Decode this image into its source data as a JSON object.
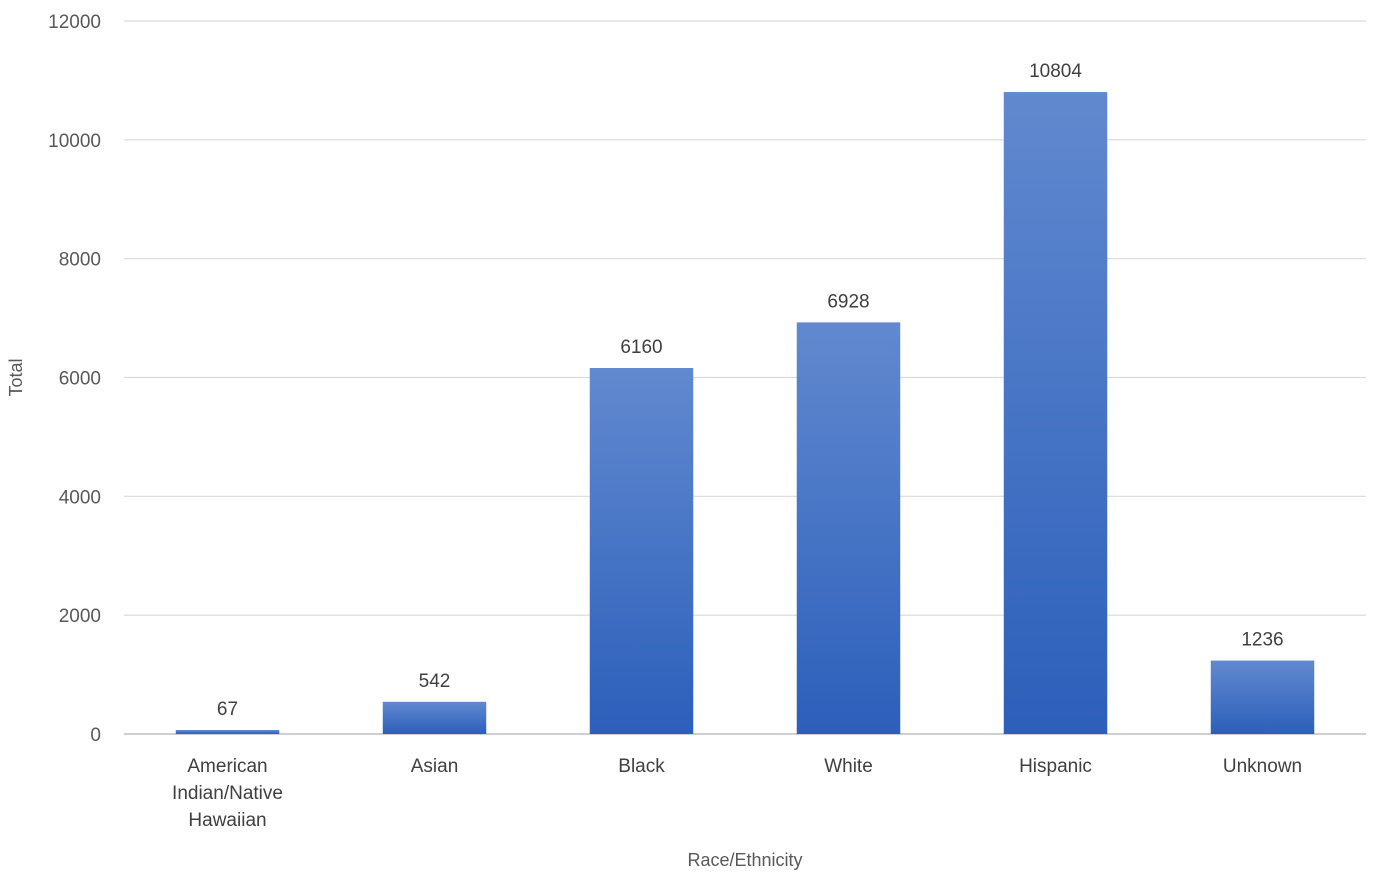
{
  "chart_data": {
    "type": "bar",
    "title": "",
    "xlabel": "Race/Ethnicity",
    "ylabel": "Total",
    "ylim": [
      0,
      12000
    ],
    "yticks": [
      0,
      2000,
      4000,
      6000,
      8000,
      10000,
      12000
    ],
    "grid": true,
    "legend": "none",
    "categories": [
      [
        "American",
        "Indian/Native",
        "Hawaiian"
      ],
      [
        "Asian"
      ],
      [
        "Black"
      ],
      [
        "White"
      ],
      [
        "Hispanic"
      ],
      [
        "Unknown"
      ]
    ],
    "series": [
      {
        "values": [
          67,
          542,
          6160,
          6928,
          10804,
          1236
        ]
      }
    ],
    "data_labels": true,
    "colors": {
      "bar_top": "#6189cf",
      "bar_bottom": "#2c5fbb",
      "grid": "#d9d9d9",
      "axis": "#bfbfbf"
    }
  }
}
